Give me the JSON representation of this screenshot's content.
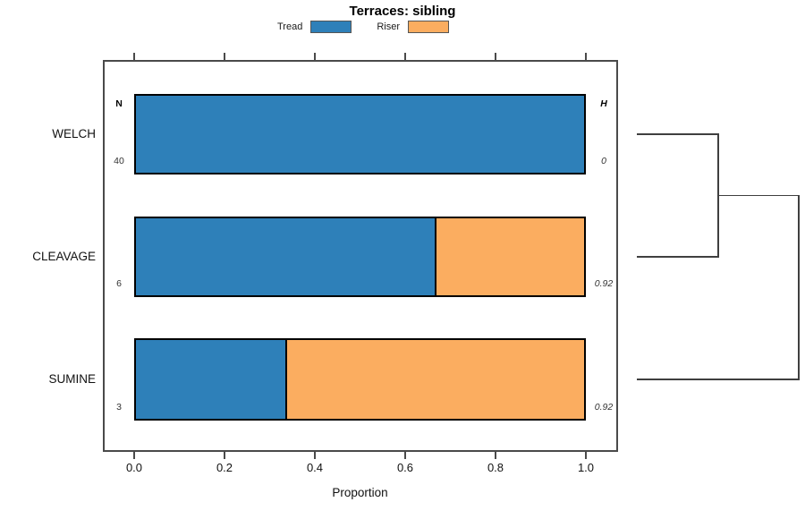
{
  "title": "Terraces: sibling",
  "legend": {
    "items": [
      {
        "label": "Tread",
        "color": "#2E80B9"
      },
      {
        "label": "Riser",
        "color": "#FBAD60"
      }
    ]
  },
  "columns": {
    "n_header": "N",
    "h_header": "H"
  },
  "axis": {
    "xlabel": "Proportion",
    "tick_labels": [
      "0.0",
      "0.2",
      "0.4",
      "0.6",
      "0.8",
      "1.0"
    ],
    "tick_values": [
      0,
      0.2,
      0.4,
      0.6,
      0.8,
      1.0
    ]
  },
  "rows": [
    {
      "label": "WELCH",
      "n": "40",
      "h": "0",
      "tread": 1.0,
      "riser": 0.0
    },
    {
      "label": "CLEAVAGE",
      "n": "6",
      "h": "0.92",
      "tread": 0.6667,
      "riser": 0.3333
    },
    {
      "label": "SUMINE",
      "n": "3",
      "h": "0.92",
      "tread": 0.3333,
      "riser": 0.6667
    }
  ],
  "chart_data": {
    "type": "bar",
    "orientation": "horizontal",
    "stacked": true,
    "title": "Terraces: sibling",
    "xlabel": "Proportion",
    "xlim": [
      0,
      1
    ],
    "xticks": [
      0.0,
      0.2,
      0.4,
      0.6,
      0.8,
      1.0
    ],
    "categories": [
      "WELCH",
      "CLEAVAGE",
      "SUMINE"
    ],
    "series": [
      {
        "name": "Tread",
        "color": "#2E80B9",
        "values": [
          1.0,
          0.6667,
          0.3333
        ]
      },
      {
        "name": "Riser",
        "color": "#FBAD60",
        "values": [
          0.0,
          0.3333,
          0.6667
        ]
      }
    ],
    "annotations": {
      "N": {
        "header": "N",
        "values": [
          40,
          6,
          3
        ]
      },
      "H": {
        "header": "H",
        "values": [
          0,
          0.92,
          0.92
        ]
      }
    },
    "legend_position": "top-center",
    "grid": false,
    "bar_border_color": "#000000",
    "dendrogram": {
      "side": "right",
      "merges": [
        {
          "children": [
            "WELCH",
            "CLEAVAGE"
          ],
          "relative_height": 0.5
        },
        {
          "children": [
            "WELCH+CLEAVAGE",
            "SUMINE"
          ],
          "relative_height": 1.0
        }
      ]
    }
  }
}
